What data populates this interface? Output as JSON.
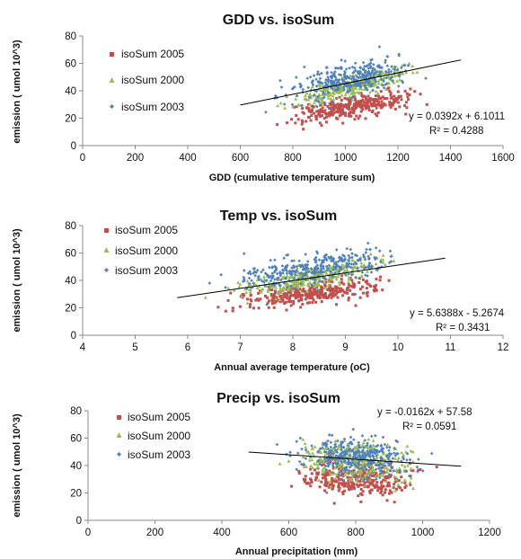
{
  "chart_data": [
    {
      "type": "scatter",
      "title": "GDD vs. isoSum",
      "xlabel": "GDD (cumulative temperature sum)",
      "ylabel": "emission ( umol 10^3)",
      "xlim": [
        0,
        1600
      ],
      "ylim": [
        0,
        80
      ],
      "xticks": [
        "0",
        "200",
        "400",
        "600",
        "800",
        "1000",
        "1200",
        "1400",
        "1600"
      ],
      "yticks": [
        "0",
        "20",
        "40",
        "60",
        "80"
      ],
      "legend_position": "top-left",
      "series": [
        {
          "name": "isoSum 2005",
          "color": "#c0504d",
          "marker": "square",
          "x_range": [
            600,
            1450
          ],
          "trend": [
            [
              600,
              17
            ],
            [
              1450,
              41
            ]
          ],
          "spread": 4
        },
        {
          "name": "isoSum 2000",
          "color": "#9bbb59",
          "marker": "triangle",
          "x_range": [
            600,
            1450
          ],
          "trend": [
            [
              600,
              23
            ],
            [
              1450,
              64
            ]
          ],
          "spread": 4
        },
        {
          "name": "isoSum 2003",
          "color": "#4f81bd",
          "marker": "diamond",
          "x_range": [
            600,
            1450
          ],
          "trend": [
            [
              600,
              33
            ],
            [
              1450,
              64
            ]
          ],
          "spread": 6
        }
      ],
      "trendline": {
        "x": [
          600,
          1440
        ],
        "y": [
          29.6,
          62.5
        ]
      },
      "equation": "y = 0.0392x + 6.1011",
      "r2": "R² = 0.4288"
    },
    {
      "type": "scatter",
      "title": "Temp vs. isoSum",
      "xlabel": "Annual average temperature (oC)",
      "ylabel": "emission ( umol 10^3)",
      "xlim": [
        4,
        12
      ],
      "ylim": [
        0,
        80
      ],
      "xticks": [
        "4",
        "5",
        "6",
        "7",
        "8",
        "9",
        "10",
        "11",
        "12"
      ],
      "yticks": [
        "0",
        "20",
        "40",
        "60",
        "80"
      ],
      "legend_position": "top-left",
      "series": [
        {
          "name": "isoSum 2005",
          "color": "#c0504d",
          "marker": "square",
          "x_range": [
            5.8,
            10.9
          ],
          "trend": [
            [
              5.8,
              20
            ],
            [
              10.9,
              41
            ]
          ],
          "spread": 4
        },
        {
          "name": "isoSum 2000",
          "color": "#9bbb59",
          "marker": "triangle",
          "x_range": [
            5.8,
            10.9
          ],
          "trend": [
            [
              5.8,
              23
            ],
            [
              10.9,
              62
            ]
          ],
          "spread": 4
        },
        {
          "name": "isoSum 2003",
          "color": "#4f81bd",
          "marker": "diamond",
          "x_range": [
            5.8,
            10.9
          ],
          "trend": [
            [
              5.8,
              33
            ],
            [
              10.9,
              63
            ]
          ],
          "spread": 6
        }
      ],
      "trendline": {
        "x": [
          5.8,
          10.9
        ],
        "y": [
          27.4,
          56.2
        ]
      },
      "equation": "y = 5.6388x - 5.2674",
      "r2": "R² = 0.3431"
    },
    {
      "type": "scatter",
      "title": "Precip vs. isoSum",
      "xlabel": "Annual precipitation (mm)",
      "ylabel": "emission ( umol 10^3)",
      "xlim": [
        0,
        1200
      ],
      "ylim": [
        0,
        80
      ],
      "xticks": [
        "0",
        "200",
        "400",
        "600",
        "800",
        "1000",
        "1200"
      ],
      "yticks": [
        "0",
        "20",
        "40",
        "60",
        "80"
      ],
      "legend_position": "top-left",
      "series": [
        {
          "name": "isoSum 2005",
          "color": "#c0504d",
          "marker": "square",
          "x_range": [
            480,
            1120
          ],
          "trend": [
            [
              480,
              34
            ],
            [
              1120,
              26
            ]
          ],
          "spread": 6
        },
        {
          "name": "isoSum 2000",
          "color": "#9bbb59",
          "marker": "triangle",
          "x_range": [
            480,
            1120
          ],
          "trend": [
            [
              480,
              47
            ],
            [
              1120,
              40
            ]
          ],
          "spread": 7
        },
        {
          "name": "isoSum 2003",
          "color": "#4f81bd",
          "marker": "diamond",
          "x_range": [
            480,
            1120
          ],
          "trend": [
            [
              480,
              50
            ],
            [
              1120,
              42
            ]
          ],
          "spread": 7
        }
      ],
      "trendline": {
        "x": [
          480,
          1115
        ],
        "y": [
          49.8,
          39.5
        ]
      },
      "equation": "y = -0.0162x + 57.58",
      "r2": "R² = 0.0591"
    }
  ]
}
